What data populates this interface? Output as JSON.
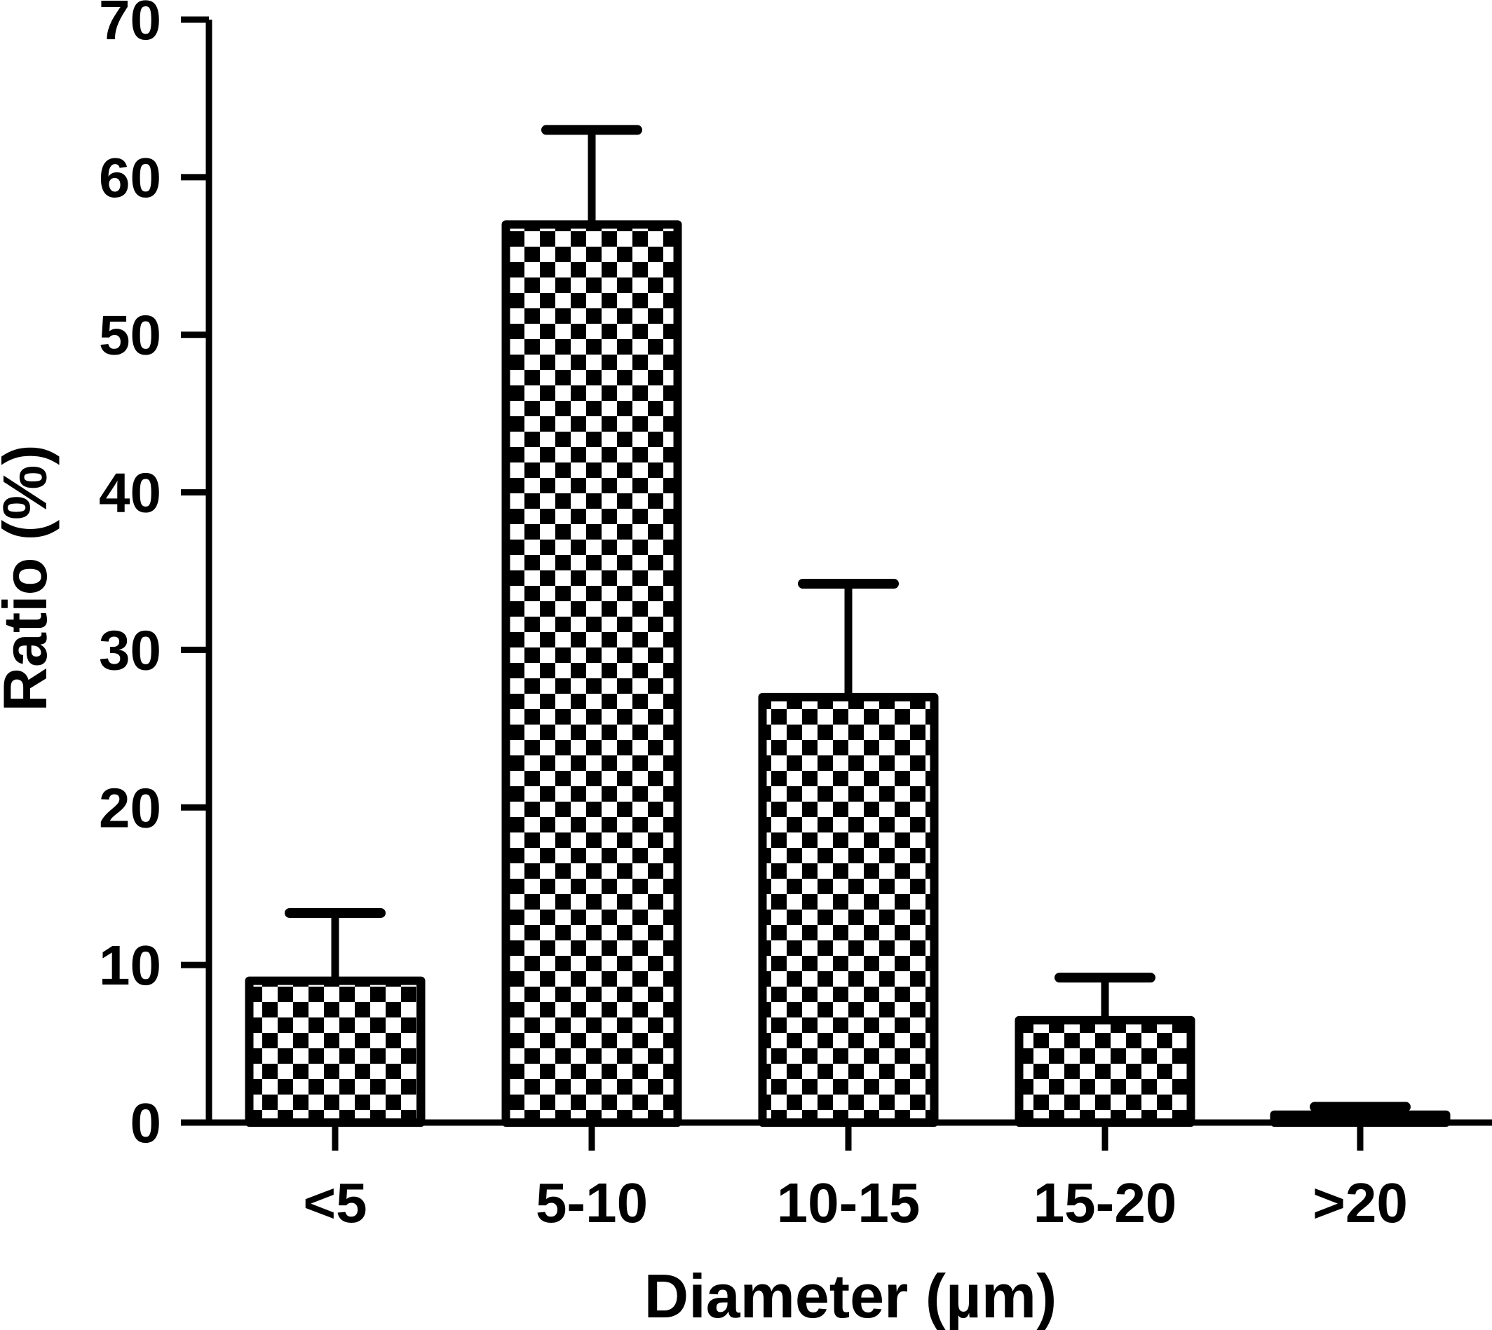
{
  "chart_data": {
    "type": "bar",
    "title": "",
    "xlabel": "Diameter (µm)",
    "ylabel": "Ratio (%)",
    "categories": [
      "<5",
      "5-10",
      "10-15",
      "15-20",
      ">20"
    ],
    "values": [
      9,
      57,
      27,
      6.5,
      0.5
    ],
    "error_upper": [
      4.3,
      6,
      7.2,
      2.7,
      0.5
    ],
    "ylim": [
      0,
      70
    ],
    "yticks": [
      0,
      10,
      20,
      30,
      40,
      50,
      60,
      70
    ],
    "ytick_labels": [
      "0",
      "10",
      "20",
      "30",
      "40",
      "50",
      "60",
      "70"
    ],
    "grid": false,
    "legend": "none",
    "bar_fill": "checkerboard",
    "colors": {
      "ink": "#000000",
      "background": "#ffffff"
    }
  }
}
